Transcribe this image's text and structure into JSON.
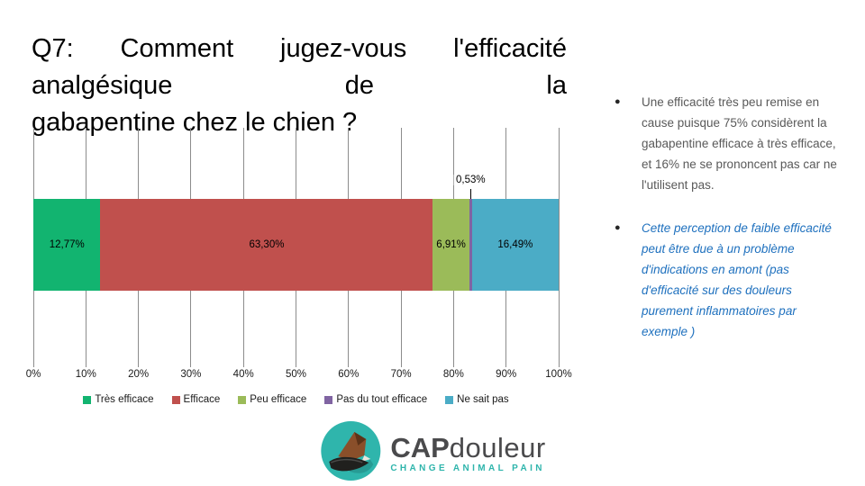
{
  "title": {
    "line1": "Q7: Comment jugez-vous l'efficacité analgésique de la",
    "line2": "gabapentine chez le chien ?"
  },
  "chart_data": {
    "type": "bar",
    "variant": "horizontal-stacked-100",
    "categories": [
      "Très efficace",
      "Efficace",
      "Peu efficace",
      "Pas du tout efficace",
      "Ne sait pas"
    ],
    "values": [
      12.77,
      63.3,
      6.91,
      0.53,
      16.49
    ],
    "value_labels": [
      "12,77%",
      "63,30%",
      "6,91%",
      "0,53%",
      "16,49%"
    ],
    "colors": [
      "#12b470",
      "#c0504d",
      "#9bbb59",
      "#8064a2",
      "#4bacc6"
    ],
    "x_ticks": [
      "0%",
      "10%",
      "20%",
      "30%",
      "40%",
      "50%",
      "60%",
      "70%",
      "80%",
      "90%",
      "100%"
    ],
    "xlim": [
      0,
      100
    ],
    "grid": true,
    "gridline_color": "#8c8c8c",
    "legend_position": "bottom",
    "callout": {
      "category": "Pas du tout efficace",
      "label": "0,53%"
    }
  },
  "notes": {
    "bullet1": "Une efficacité très peu remise en cause puisque 75% considèrent la gabapentine efficace à très efficace, et 16% ne se prononcent pas car ne l'utilisent pas.",
    "bullet2": "Cette perception de faible efficacité peut être due à un problème d'indications en amont (pas d'efficacité sur des douleurs purement inflammatoires par exemple )",
    "marker": "●"
  },
  "logo": {
    "brand_bold": "CAP",
    "brand_regular": "douleur",
    "tagline": "CHANGE ANIMAL PAIN",
    "teal": "#2fb5ac",
    "text_color": "#4a4a4c"
  }
}
